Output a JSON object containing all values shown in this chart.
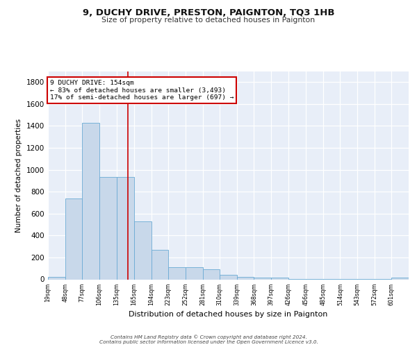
{
  "title": "9, DUCHY DRIVE, PRESTON, PAIGNTON, TQ3 1HB",
  "subtitle": "Size of property relative to detached houses in Paignton",
  "xlabel": "Distribution of detached houses by size in Paignton",
  "ylabel": "Number of detached properties",
  "bar_edges": [
    19,
    48,
    77,
    106,
    135,
    165,
    194,
    223,
    252,
    281,
    310,
    339,
    368,
    397,
    426,
    456,
    485,
    514,
    543,
    572,
    601
  ],
  "bar_heights": [
    25,
    740,
    1430,
    935,
    935,
    530,
    270,
    110,
    110,
    90,
    40,
    25,
    15,
    15,
    5,
    5,
    5,
    5,
    5,
    5,
    15
  ],
  "bar_color": "#c8d8ea",
  "bar_edge_color": "#6aaad4",
  "vline_x": 154,
  "vline_color": "#cc0000",
  "annotation_text": "9 DUCHY DRIVE: 154sqm\n← 83% of detached houses are smaller (3,493)\n17% of semi-detached houses are larger (697) →",
  "annotation_box_color": "#ffffff",
  "annotation_box_edge": "#cc0000",
  "ylim": [
    0,
    1900
  ],
  "yticks": [
    0,
    200,
    400,
    600,
    800,
    1000,
    1200,
    1400,
    1600,
    1800
  ],
  "tick_labels": [
    "19sqm",
    "48sqm",
    "77sqm",
    "106sqm",
    "135sqm",
    "165sqm",
    "194sqm",
    "223sqm",
    "252sqm",
    "281sqm",
    "310sqm",
    "339sqm",
    "368sqm",
    "397sqm",
    "426sqm",
    "456sqm",
    "485sqm",
    "514sqm",
    "543sqm",
    "572sqm",
    "601sqm"
  ],
  "footer": "Contains HM Land Registry data © Crown copyright and database right 2024.\nContains public sector information licensed under the Open Government Licence v3.0.",
  "plot_bg_color": "#e8eef8"
}
